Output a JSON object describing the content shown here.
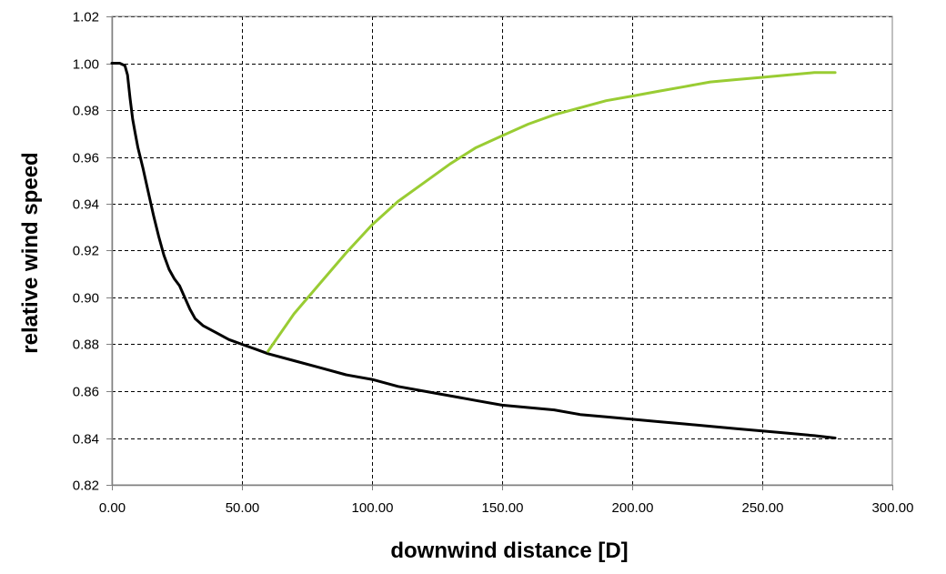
{
  "chart_data": {
    "type": "line",
    "title": "",
    "xlabel": "downwind distance [D]",
    "ylabel": "relative wind speed",
    "xlim": [
      0,
      300
    ],
    "ylim": [
      0.82,
      1.02
    ],
    "x_ticks": [
      0,
      50,
      100,
      150,
      200,
      250,
      300
    ],
    "x_tick_labels": [
      "0.00",
      "50.00",
      "100.00",
      "150.00",
      "200.00",
      "250.00",
      "300.00"
    ],
    "y_ticks": [
      0.82,
      0.84,
      0.86,
      0.88,
      0.9,
      0.92,
      0.94,
      0.96,
      0.98,
      1.0,
      1.02
    ],
    "y_tick_labels": [
      "0.82",
      "0.84",
      "0.86",
      "0.88",
      "0.90",
      "0.92",
      "0.94",
      "0.96",
      "0.98",
      "1.00",
      "1.02"
    ],
    "grid": true,
    "legend": "none",
    "series": [
      {
        "color": "#000000",
        "x": [
          0,
          3,
          5,
          6,
          7,
          8,
          9,
          10,
          12,
          14,
          16,
          18,
          20,
          22,
          24,
          26,
          28,
          30,
          32,
          35,
          40,
          45,
          50,
          55,
          60,
          70,
          80,
          90,
          100,
          110,
          120,
          130,
          140,
          150,
          160,
          170,
          180,
          190,
          200,
          210,
          220,
          230,
          240,
          250,
          260,
          270,
          278
        ],
        "y": [
          1.0,
          1.0,
          0.999,
          0.995,
          0.985,
          0.976,
          0.97,
          0.964,
          0.955,
          0.945,
          0.935,
          0.926,
          0.918,
          0.912,
          0.908,
          0.905,
          0.9,
          0.895,
          0.891,
          0.888,
          0.885,
          0.882,
          0.88,
          0.878,
          0.876,
          0.873,
          0.87,
          0.867,
          0.865,
          0.862,
          0.86,
          0.858,
          0.856,
          0.854,
          0.853,
          0.852,
          0.85,
          0.849,
          0.848,
          0.847,
          0.846,
          0.845,
          0.844,
          0.843,
          0.842,
          0.841,
          0.84
        ]
      },
      {
        "color": "#99cc33",
        "x": [
          60,
          70,
          80,
          90,
          100,
          110,
          120,
          130,
          140,
          150,
          160,
          170,
          180,
          190,
          200,
          210,
          220,
          230,
          240,
          250,
          260,
          270,
          278
        ],
        "y": [
          0.877,
          0.893,
          0.906,
          0.919,
          0.931,
          0.941,
          0.949,
          0.957,
          0.964,
          0.969,
          0.974,
          0.978,
          0.981,
          0.984,
          0.986,
          0.988,
          0.99,
          0.992,
          0.993,
          0.994,
          0.995,
          0.996,
          0.996
        ]
      }
    ]
  }
}
